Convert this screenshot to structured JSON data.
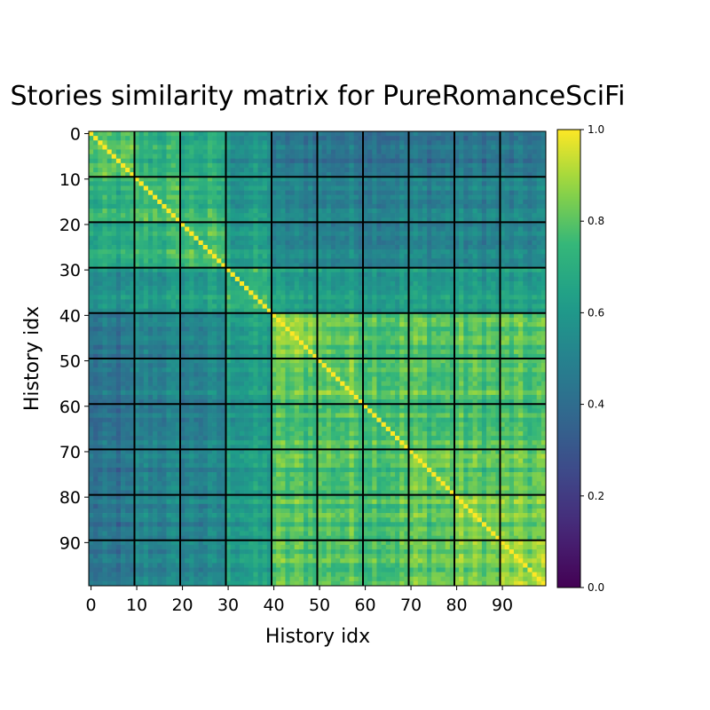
{
  "chart_data": {
    "type": "heatmap",
    "title": "Stories similarity matrix for PureRomanceSciFi",
    "xlabel": "History idx",
    "ylabel": "History idx",
    "n": 100,
    "x_ticks": [
      0,
      10,
      20,
      30,
      40,
      50,
      60,
      70,
      80,
      90
    ],
    "y_ticks": [
      0,
      10,
      20,
      30,
      40,
      50,
      60,
      70,
      80,
      90
    ],
    "block_boundaries": [
      9.5,
      19.5,
      29.5,
      39.5,
      49.5,
      59.5,
      69.5,
      79.5,
      89.5
    ],
    "colorbar": {
      "min": 0.0,
      "max": 1.0,
      "ticks": [
        "0.0",
        "0.2",
        "0.4",
        "0.6",
        "0.8",
        "1.0"
      ]
    },
    "colormap": "viridis",
    "grid_line_color": "#000000",
    "diagonal_value": 1.0,
    "block_means": [
      [
        0.76,
        0.7,
        0.66,
        0.55,
        0.42,
        0.42,
        0.42,
        0.42,
        0.42,
        0.42
      ],
      [
        0.7,
        0.76,
        0.72,
        0.6,
        0.5,
        0.5,
        0.5,
        0.5,
        0.5,
        0.5
      ],
      [
        0.66,
        0.72,
        0.76,
        0.62,
        0.5,
        0.5,
        0.5,
        0.5,
        0.5,
        0.5
      ],
      [
        0.55,
        0.6,
        0.62,
        0.72,
        0.62,
        0.62,
        0.62,
        0.62,
        0.62,
        0.62
      ],
      [
        0.42,
        0.5,
        0.5,
        0.62,
        0.85,
        0.8,
        0.78,
        0.78,
        0.78,
        0.78
      ],
      [
        0.42,
        0.5,
        0.5,
        0.62,
        0.8,
        0.82,
        0.8,
        0.78,
        0.78,
        0.78
      ],
      [
        0.42,
        0.5,
        0.5,
        0.62,
        0.78,
        0.8,
        0.8,
        0.78,
        0.78,
        0.78
      ],
      [
        0.42,
        0.5,
        0.5,
        0.62,
        0.78,
        0.78,
        0.78,
        0.82,
        0.8,
        0.8
      ],
      [
        0.42,
        0.5,
        0.5,
        0.62,
        0.78,
        0.78,
        0.78,
        0.8,
        0.84,
        0.82
      ],
      [
        0.42,
        0.5,
        0.5,
        0.62,
        0.78,
        0.78,
        0.78,
        0.8,
        0.82,
        0.86
      ]
    ]
  }
}
